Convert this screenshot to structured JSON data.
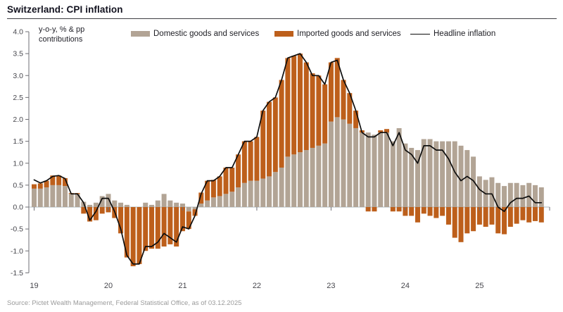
{
  "header": {
    "title": "Switzerland: CPI inflation"
  },
  "axis_note": {
    "line1": "y-o-y, % & pp",
    "line2": "contributions"
  },
  "source": "Source: Pictet Wealth Management, Federal Statistical Office, as of 03.12.2025",
  "colors": {
    "domestic": "#b2a495",
    "imported": "#bd5f1b",
    "headline": "#0d0d0d",
    "zero_line": "#aebbc1",
    "axis": "#6f6f74",
    "tick_text": "#47474d"
  },
  "chart_data": {
    "type": "bar",
    "subtype": "stacked-bars-with-line-overlay",
    "title": "Switzerland: CPI inflation",
    "ylabel": "y-o-y, % & pp contributions",
    "ylim": [
      -1.5,
      4.0
    ],
    "y_ticks": [
      4.0,
      3.5,
      3.0,
      2.5,
      2.0,
      1.5,
      1.0,
      0.5,
      0.0,
      -0.5,
      -1.0,
      -1.5
    ],
    "x_tick_labels": [
      "19",
      "20",
      "21",
      "22",
      "23",
      "24",
      "25"
    ],
    "grid": false,
    "legend_position": "top",
    "legend": [
      "Domestic goods and services",
      "Imported goods and services",
      "Headline inflation"
    ],
    "x": [
      "2019-01",
      "2019-02",
      "2019-03",
      "2019-04",
      "2019-05",
      "2019-06",
      "2019-07",
      "2019-08",
      "2019-09",
      "2019-10",
      "2019-11",
      "2019-12",
      "2020-01",
      "2020-02",
      "2020-03",
      "2020-04",
      "2020-05",
      "2020-06",
      "2020-07",
      "2020-08",
      "2020-09",
      "2020-10",
      "2020-11",
      "2020-12",
      "2021-01",
      "2021-02",
      "2021-03",
      "2021-04",
      "2021-05",
      "2021-06",
      "2021-07",
      "2021-08",
      "2021-09",
      "2021-10",
      "2021-11",
      "2021-12",
      "2022-01",
      "2022-02",
      "2022-03",
      "2022-04",
      "2022-05",
      "2022-06",
      "2022-07",
      "2022-08",
      "2022-09",
      "2022-10",
      "2022-11",
      "2022-12",
      "2023-01",
      "2023-02",
      "2023-03",
      "2023-04",
      "2023-05",
      "2023-06",
      "2023-07",
      "2023-08",
      "2023-09",
      "2023-10",
      "2023-11",
      "2023-12",
      "2024-01",
      "2024-02",
      "2024-03",
      "2024-04",
      "2024-05",
      "2024-06",
      "2024-07",
      "2024-08",
      "2024-09",
      "2024-10",
      "2024-11",
      "2024-12",
      "2025-01",
      "2025-02",
      "2025-03",
      "2025-04",
      "2025-05",
      "2025-06",
      "2025-07",
      "2025-08",
      "2025-09",
      "2025-10",
      "2025-11"
    ],
    "series": [
      {
        "name": "Domestic goods and services",
        "type": "bar",
        "color": "#b2a495",
        "values": [
          0.42,
          0.42,
          0.45,
          0.5,
          0.5,
          0.48,
          0.3,
          0.3,
          0.12,
          0.05,
          0.1,
          0.25,
          0.3,
          0.15,
          0.1,
          0.05,
          0.0,
          0.0,
          0.1,
          0.05,
          0.15,
          0.3,
          0.15,
          0.1,
          0.08,
          -0.1,
          -0.05,
          0.08,
          0.15,
          0.22,
          0.25,
          0.3,
          0.35,
          0.45,
          0.55,
          0.6,
          0.6,
          0.65,
          0.7,
          0.8,
          0.9,
          1.15,
          1.2,
          1.25,
          1.3,
          1.35,
          1.4,
          1.45,
          1.95,
          2.05,
          2.0,
          1.9,
          1.8,
          1.7,
          1.7,
          1.65,
          1.7,
          1.7,
          1.5,
          1.8,
          1.45,
          1.35,
          1.3,
          1.55,
          1.55,
          1.5,
          1.5,
          1.5,
          1.5,
          1.4,
          1.3,
          1.15,
          0.7,
          0.62,
          0.68,
          0.55,
          0.48,
          0.55,
          0.55,
          0.5,
          0.55,
          0.5,
          0.45
        ]
      },
      {
        "name": "Imported goods and services",
        "type": "bar",
        "color": "#bd5f1b",
        "values": [
          0.1,
          0.12,
          0.15,
          0.22,
          0.22,
          0.18,
          0.02,
          0.02,
          -0.15,
          -0.33,
          -0.3,
          -0.15,
          -0.12,
          -0.25,
          -0.6,
          -1.15,
          -1.35,
          -1.3,
          -1.0,
          -0.95,
          -0.95,
          -0.9,
          -0.85,
          -0.9,
          -0.55,
          -0.4,
          -0.15,
          0.25,
          0.45,
          0.4,
          0.45,
          0.6,
          0.55,
          0.75,
          0.95,
          0.9,
          1.0,
          1.55,
          1.7,
          1.7,
          2.0,
          2.25,
          2.25,
          2.25,
          2.0,
          1.7,
          1.6,
          1.35,
          1.35,
          1.35,
          0.9,
          0.7,
          0.4,
          0.05,
          -0.1,
          -0.1,
          0.05,
          0.08,
          -0.1,
          -0.1,
          -0.2,
          -0.2,
          -0.35,
          -0.15,
          -0.2,
          -0.25,
          -0.2,
          -0.4,
          -0.7,
          -0.8,
          -0.6,
          -0.55,
          -0.4,
          -0.45,
          -0.4,
          -0.6,
          -0.62,
          -0.45,
          -0.38,
          -0.3,
          -0.35,
          -0.32,
          -0.35
        ]
      },
      {
        "name": "Headline inflation",
        "type": "line",
        "color": "#0d0d0d",
        "values": [
          0.62,
          0.55,
          0.6,
          0.7,
          0.72,
          0.65,
          0.3,
          0.3,
          0.1,
          -0.3,
          -0.1,
          0.2,
          0.2,
          -0.1,
          -0.5,
          -1.1,
          -1.3,
          -1.3,
          -0.9,
          -0.9,
          -0.8,
          -0.6,
          -0.7,
          -0.8,
          -0.45,
          -0.5,
          -0.2,
          0.3,
          0.6,
          0.6,
          0.7,
          0.9,
          0.9,
          1.2,
          1.5,
          1.5,
          1.6,
          2.2,
          2.4,
          2.5,
          2.9,
          3.4,
          3.45,
          3.5,
          3.3,
          3.0,
          3.0,
          2.8,
          3.3,
          3.35,
          2.9,
          2.6,
          2.2,
          1.7,
          1.6,
          1.6,
          1.7,
          1.7,
          1.4,
          1.7,
          1.3,
          1.2,
          1.0,
          1.4,
          1.4,
          1.3,
          1.3,
          1.1,
          0.8,
          0.6,
          0.7,
          0.6,
          0.4,
          0.3,
          0.3,
          0.0,
          -0.1,
          0.1,
          0.2,
          0.2,
          0.25,
          0.1,
          0.1
        ]
      }
    ]
  }
}
